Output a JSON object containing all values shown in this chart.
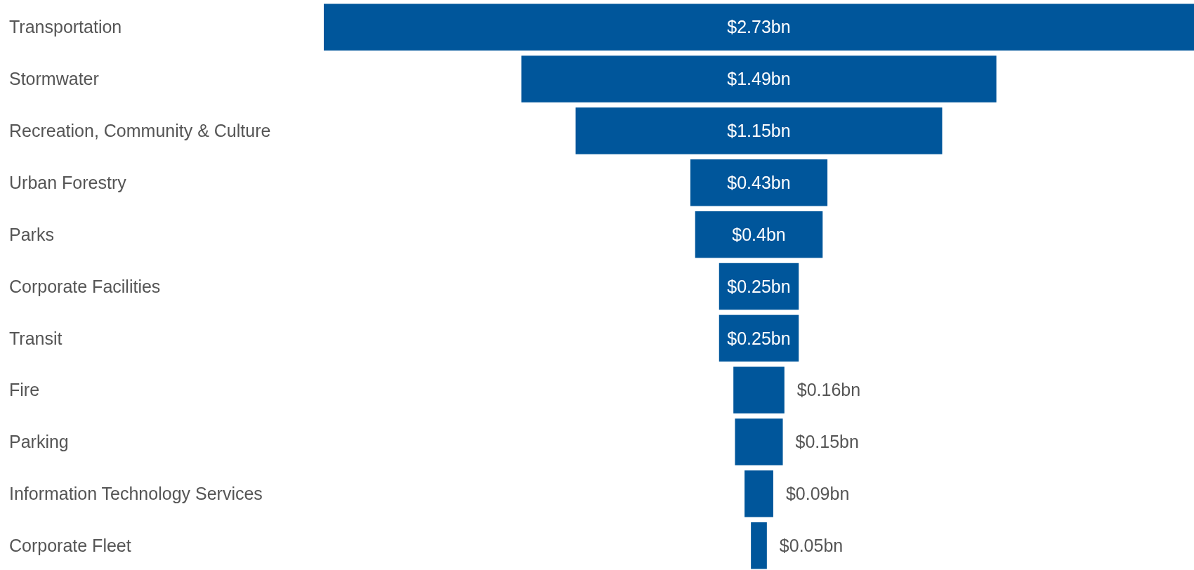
{
  "chart_data": {
    "type": "other",
    "categories": [
      "Transportation",
      "Stormwater",
      "Recreation, Community & Culture",
      "Urban Forestry",
      "Parks",
      "Corporate Facilities",
      "Transit",
      "Fire",
      "Parking",
      "Information Technology Services",
      "Corporate Fleet"
    ],
    "values": [
      2.73,
      1.49,
      1.15,
      0.43,
      0.4,
      0.25,
      0.25,
      0.16,
      0.15,
      0.09,
      0.05
    ],
    "value_labels": [
      "$2.73bn",
      "$1.49bn",
      "$1.15bn",
      "$0.43bn",
      "$0.4bn",
      "$0.25bn",
      "$0.25bn",
      "$0.16bn",
      "$0.15bn",
      "$0.09bn",
      "$0.05bn"
    ],
    "color": "#00569b"
  }
}
